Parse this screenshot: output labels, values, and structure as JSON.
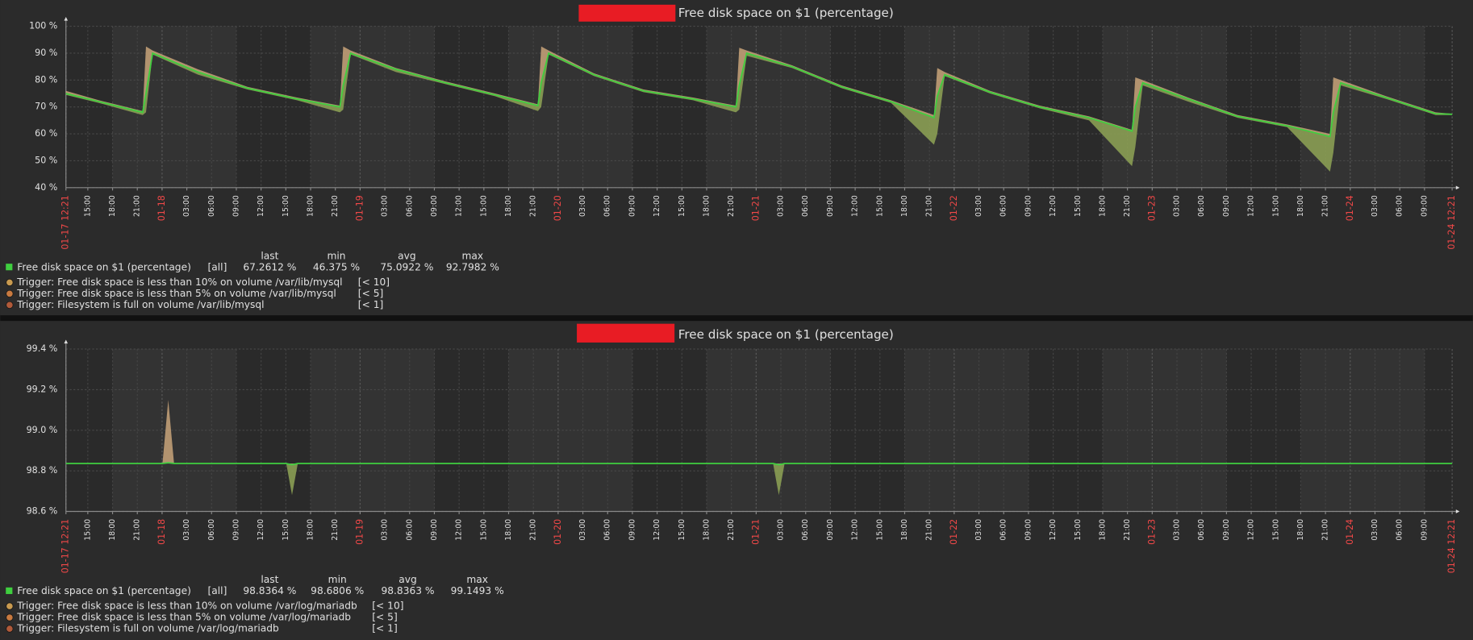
{
  "chart_data": [
    {
      "type": "line",
      "title": "Free disk space on $1 (percentage)",
      "x": [
        0,
        4,
        9.3,
        9.7,
        10.5,
        16,
        22,
        28,
        33.2,
        33.6,
        34.5,
        40,
        46,
        52,
        57.2,
        57.6,
        58.5,
        64,
        70,
        76,
        81.2,
        81.6,
        82.5,
        88,
        94,
        100,
        105.2,
        105.6,
        106.5,
        112,
        118,
        124,
        129.2,
        129.6,
        130.5,
        136,
        142,
        148,
        153.2,
        153.6,
        154.5,
        160,
        166,
        168
      ],
      "series": [
        {
          "name": "Free disk space on $1 (percentage)",
          "color": "#3fcf3f",
          "max_color": "#c9a57a",
          "min_color": "#8fa456",
          "values": [
            75,
            72,
            68,
            75,
            90,
            83,
            77,
            73,
            70,
            78,
            90,
            84,
            79,
            74.5,
            70.5,
            79,
            90,
            82,
            76,
            73,
            70,
            78,
            90,
            85,
            77.5,
            72,
            66,
            74,
            82,
            75.5,
            70,
            66,
            61,
            70,
            79,
            73,
            66.5,
            63,
            59,
            68,
            79,
            73.5,
            67.5,
            67.3
          ],
          "min": [
            74.5,
            71.5,
            67,
            68,
            89.5,
            82,
            76.5,
            72.5,
            68,
            69,
            89.5,
            83,
            78.5,
            74,
            68.5,
            70,
            89.5,
            81.5,
            75.5,
            72.5,
            68,
            69,
            89,
            84.5,
            77,
            71.5,
            56,
            60,
            81.5,
            75,
            69.5,
            65,
            48,
            55,
            78,
            72,
            66,
            62.5,
            46,
            53,
            78,
            73,
            67,
            67
          ],
          "max": [
            76,
            72.5,
            68.5,
            92.5,
            91,
            84,
            77.5,
            73.5,
            70.5,
            92.5,
            91,
            84.5,
            79.5,
            75,
            71,
            92.5,
            91,
            82.5,
            76.5,
            73.5,
            70.5,
            92,
            91,
            85.5,
            78,
            72.5,
            67,
            84.5,
            83,
            76,
            70.5,
            66.5,
            61.5,
            81,
            80,
            73.5,
            67,
            63.5,
            60,
            81,
            80,
            74,
            68,
            67.5
          ]
        }
      ],
      "xlim": [
        0,
        168
      ],
      "xticks": [
        {
          "value": 0,
          "label": "01-17 12:21"
        },
        {
          "value": 2.65,
          "label": "15:00"
        },
        {
          "value": 5.65,
          "label": "18:00"
        },
        {
          "value": 8.65,
          "label": "21:00"
        },
        {
          "value": 11.65,
          "label": "01-18"
        },
        {
          "value": 14.65,
          "label": "03:00"
        },
        {
          "value": 17.65,
          "label": "06:00"
        },
        {
          "value": 20.65,
          "label": "09:00"
        },
        {
          "value": 23.65,
          "label": "12:00"
        },
        {
          "value": 26.65,
          "label": "15:00"
        },
        {
          "value": 29.65,
          "label": "18:00"
        },
        {
          "value": 32.65,
          "label": "21:00"
        },
        {
          "value": 35.65,
          "label": "01-19"
        },
        {
          "value": 38.65,
          "label": "03:00"
        },
        {
          "value": 41.65,
          "label": "06:00"
        },
        {
          "value": 44.65,
          "label": "09:00"
        },
        {
          "value": 47.65,
          "label": "12:00"
        },
        {
          "value": 50.65,
          "label": "15:00"
        },
        {
          "value": 53.65,
          "label": "18:00"
        },
        {
          "value": 56.65,
          "label": "21:00"
        },
        {
          "value": 59.65,
          "label": "01-20"
        },
        {
          "value": 62.65,
          "label": "03:00"
        },
        {
          "value": 65.65,
          "label": "06:00"
        },
        {
          "value": 68.65,
          "label": "09:00"
        },
        {
          "value": 71.65,
          "label": "12:00"
        },
        {
          "value": 74.65,
          "label": "15:00"
        },
        {
          "value": 77.65,
          "label": "18:00"
        },
        {
          "value": 80.65,
          "label": "21:00"
        },
        {
          "value": 83.65,
          "label": "01-21"
        },
        {
          "value": 86.65,
          "label": "03:00"
        },
        {
          "value": 89.65,
          "label": "06:00"
        },
        {
          "value": 92.65,
          "label": "09:00"
        },
        {
          "value": 95.65,
          "label": "12:00"
        },
        {
          "value": 98.65,
          "label": "15:00"
        },
        {
          "value": 101.65,
          "label": "18:00"
        },
        {
          "value": 104.65,
          "label": "21:00"
        },
        {
          "value": 107.65,
          "label": "01-22"
        },
        {
          "value": 110.65,
          "label": "03:00"
        },
        {
          "value": 113.65,
          "label": "06:00"
        },
        {
          "value": 116.65,
          "label": "09:00"
        },
        {
          "value": 119.65,
          "label": "12:00"
        },
        {
          "value": 122.65,
          "label": "15:00"
        },
        {
          "value": 125.65,
          "label": "18:00"
        },
        {
          "value": 128.65,
          "label": "21:00"
        },
        {
          "value": 131.65,
          "label": "01-23"
        },
        {
          "value": 134.65,
          "label": "03:00"
        },
        {
          "value": 137.65,
          "label": "06:00"
        },
        {
          "value": 140.65,
          "label": "09:00"
        },
        {
          "value": 143.65,
          "label": "12:00"
        },
        {
          "value": 146.65,
          "label": "15:00"
        },
        {
          "value": 149.65,
          "label": "18:00"
        },
        {
          "value": 152.65,
          "label": "21:00"
        },
        {
          "value": 155.65,
          "label": "01-24"
        },
        {
          "value": 158.65,
          "label": "03:00"
        },
        {
          "value": 161.65,
          "label": "06:00"
        },
        {
          "value": 164.65,
          "label": "09:00"
        },
        {
          "value": 168,
          "label": "01-24 12:21"
        }
      ],
      "ylim": [
        40,
        100
      ],
      "yticks": [
        {
          "value": 40,
          "label": "40 %"
        },
        {
          "value": 50,
          "label": "50 %"
        },
        {
          "value": 60,
          "label": "60 %"
        },
        {
          "value": 70,
          "label": "70 %"
        },
        {
          "value": 80,
          "label": "80 %"
        },
        {
          "value": 90,
          "label": "90 %"
        },
        {
          "value": 100,
          "label": "100 %"
        }
      ],
      "grid": true,
      "legend": {
        "headers": [
          "last",
          "min",
          "avg",
          "max"
        ],
        "function": "[all]",
        "stats": [
          "67.2612 %",
          "46.375 %",
          "75.0922 %",
          "92.7982 %"
        ]
      },
      "triggers": [
        {
          "name": "Trigger: Free disk space is less than 10% on volume /var/lib/mysql",
          "label": "[< 10]",
          "color": "#c89a50"
        },
        {
          "name": "Trigger: Free disk space is less than 5% on volume /var/lib/mysql",
          "label": "[< 5]",
          "color": "#c87a40"
        },
        {
          "name": "Trigger: Filesystem is full on volume /var/lib/mysql",
          "label": "[< 1]",
          "color": "#b05a3a"
        }
      ]
    },
    {
      "type": "line",
      "title": "Free disk space on $1 (percentage)",
      "x": [
        0,
        11.7,
        12.4,
        13.1,
        26.7,
        27.4,
        28.1,
        85.7,
        86.4,
        87.1,
        168
      ],
      "series": [
        {
          "name": "Free disk space on $1 (percentage)",
          "color": "#3fcf3f",
          "max_color": "#c9a57a",
          "min_color": "#8fa456",
          "values": [
            98.8364,
            98.8364,
            98.84,
            98.8364,
            98.8364,
            98.83,
            98.8364,
            98.8364,
            98.83,
            98.8364,
            98.8364
          ],
          "min": [
            98.8364,
            98.8364,
            98.8364,
            98.8364,
            98.8364,
            98.6806,
            98.8364,
            98.8364,
            98.6806,
            98.8364,
            98.8364
          ],
          "max": [
            98.8364,
            98.8364,
            99.1493,
            98.8364,
            98.8364,
            98.8364,
            98.8364,
            98.8364,
            98.8364,
            98.8364,
            98.8364
          ]
        }
      ],
      "xlim": [
        0,
        168
      ],
      "xticks": [
        {
          "value": 0,
          "label": "01-17 12:21"
        },
        {
          "value": 2.65,
          "label": "15:00"
        },
        {
          "value": 5.65,
          "label": "18:00"
        },
        {
          "value": 8.65,
          "label": "21:00"
        },
        {
          "value": 11.65,
          "label": "01-18"
        },
        {
          "value": 14.65,
          "label": "03:00"
        },
        {
          "value": 17.65,
          "label": "06:00"
        },
        {
          "value": 20.65,
          "label": "09:00"
        },
        {
          "value": 23.65,
          "label": "12:00"
        },
        {
          "value": 26.65,
          "label": "15:00"
        },
        {
          "value": 29.65,
          "label": "18:00"
        },
        {
          "value": 32.65,
          "label": "21:00"
        },
        {
          "value": 35.65,
          "label": "01-19"
        },
        {
          "value": 38.65,
          "label": "03:00"
        },
        {
          "value": 41.65,
          "label": "06:00"
        },
        {
          "value": 44.65,
          "label": "09:00"
        },
        {
          "value": 47.65,
          "label": "12:00"
        },
        {
          "value": 50.65,
          "label": "15:00"
        },
        {
          "value": 53.65,
          "label": "18:00"
        },
        {
          "value": 56.65,
          "label": "21:00"
        },
        {
          "value": 59.65,
          "label": "01-20"
        },
        {
          "value": 62.65,
          "label": "03:00"
        },
        {
          "value": 65.65,
          "label": "06:00"
        },
        {
          "value": 68.65,
          "label": "09:00"
        },
        {
          "value": 71.65,
          "label": "12:00"
        },
        {
          "value": 74.65,
          "label": "15:00"
        },
        {
          "value": 77.65,
          "label": "18:00"
        },
        {
          "value": 80.65,
          "label": "21:00"
        },
        {
          "value": 83.65,
          "label": "01-21"
        },
        {
          "value": 86.65,
          "label": "03:00"
        },
        {
          "value": 89.65,
          "label": "06:00"
        },
        {
          "value": 92.65,
          "label": "09:00"
        },
        {
          "value": 95.65,
          "label": "12:00"
        },
        {
          "value": 98.65,
          "label": "15:00"
        },
        {
          "value": 101.65,
          "label": "18:00"
        },
        {
          "value": 104.65,
          "label": "21:00"
        },
        {
          "value": 107.65,
          "label": "01-22"
        },
        {
          "value": 110.65,
          "label": "03:00"
        },
        {
          "value": 113.65,
          "label": "06:00"
        },
        {
          "value": 116.65,
          "label": "09:00"
        },
        {
          "value": 119.65,
          "label": "12:00"
        },
        {
          "value": 122.65,
          "label": "15:00"
        },
        {
          "value": 125.65,
          "label": "18:00"
        },
        {
          "value": 128.65,
          "label": "21:00"
        },
        {
          "value": 131.65,
          "label": "01-23"
        },
        {
          "value": 134.65,
          "label": "03:00"
        },
        {
          "value": 137.65,
          "label": "06:00"
        },
        {
          "value": 140.65,
          "label": "09:00"
        },
        {
          "value": 143.65,
          "label": "12:00"
        },
        {
          "value": 146.65,
          "label": "15:00"
        },
        {
          "value": 149.65,
          "label": "18:00"
        },
        {
          "value": 152.65,
          "label": "21:00"
        },
        {
          "value": 155.65,
          "label": "01-24"
        },
        {
          "value": 158.65,
          "label": "03:00"
        },
        {
          "value": 161.65,
          "label": "06:00"
        },
        {
          "value": 164.65,
          "label": "09:00"
        },
        {
          "value": 168,
          "label": "01-24 12:21"
        }
      ],
      "ylim": [
        98.6,
        99.4
      ],
      "yticks": [
        {
          "value": 98.6,
          "label": "98.6 %"
        },
        {
          "value": 98.8,
          "label": "98.8 %"
        },
        {
          "value": 99,
          "label": "99.0 %"
        },
        {
          "value": 99.2,
          "label": "99.2 %"
        },
        {
          "value": 99.4,
          "label": "99.4 %"
        }
      ],
      "grid": true,
      "legend": {
        "headers": [
          "last",
          "min",
          "avg",
          "max"
        ],
        "function": "[all]",
        "stats": [
          "98.8364 %",
          "98.6806 %",
          "98.8363 %",
          "99.1493 %"
        ]
      },
      "triggers": [
        {
          "name": "Trigger: Free disk space is less than 10% on volume /var/log/mariadb",
          "label": "[< 10]",
          "color": "#c89a50"
        },
        {
          "name": "Trigger: Free disk space is less than 5% on volume /var/log/mariadb",
          "label": "[< 5]",
          "color": "#c87a40"
        },
        {
          "name": "Trigger: Filesystem is full on volume /var/log/mariadb",
          "label": "[< 1]",
          "color": "#b05a3a"
        }
      ]
    }
  ]
}
